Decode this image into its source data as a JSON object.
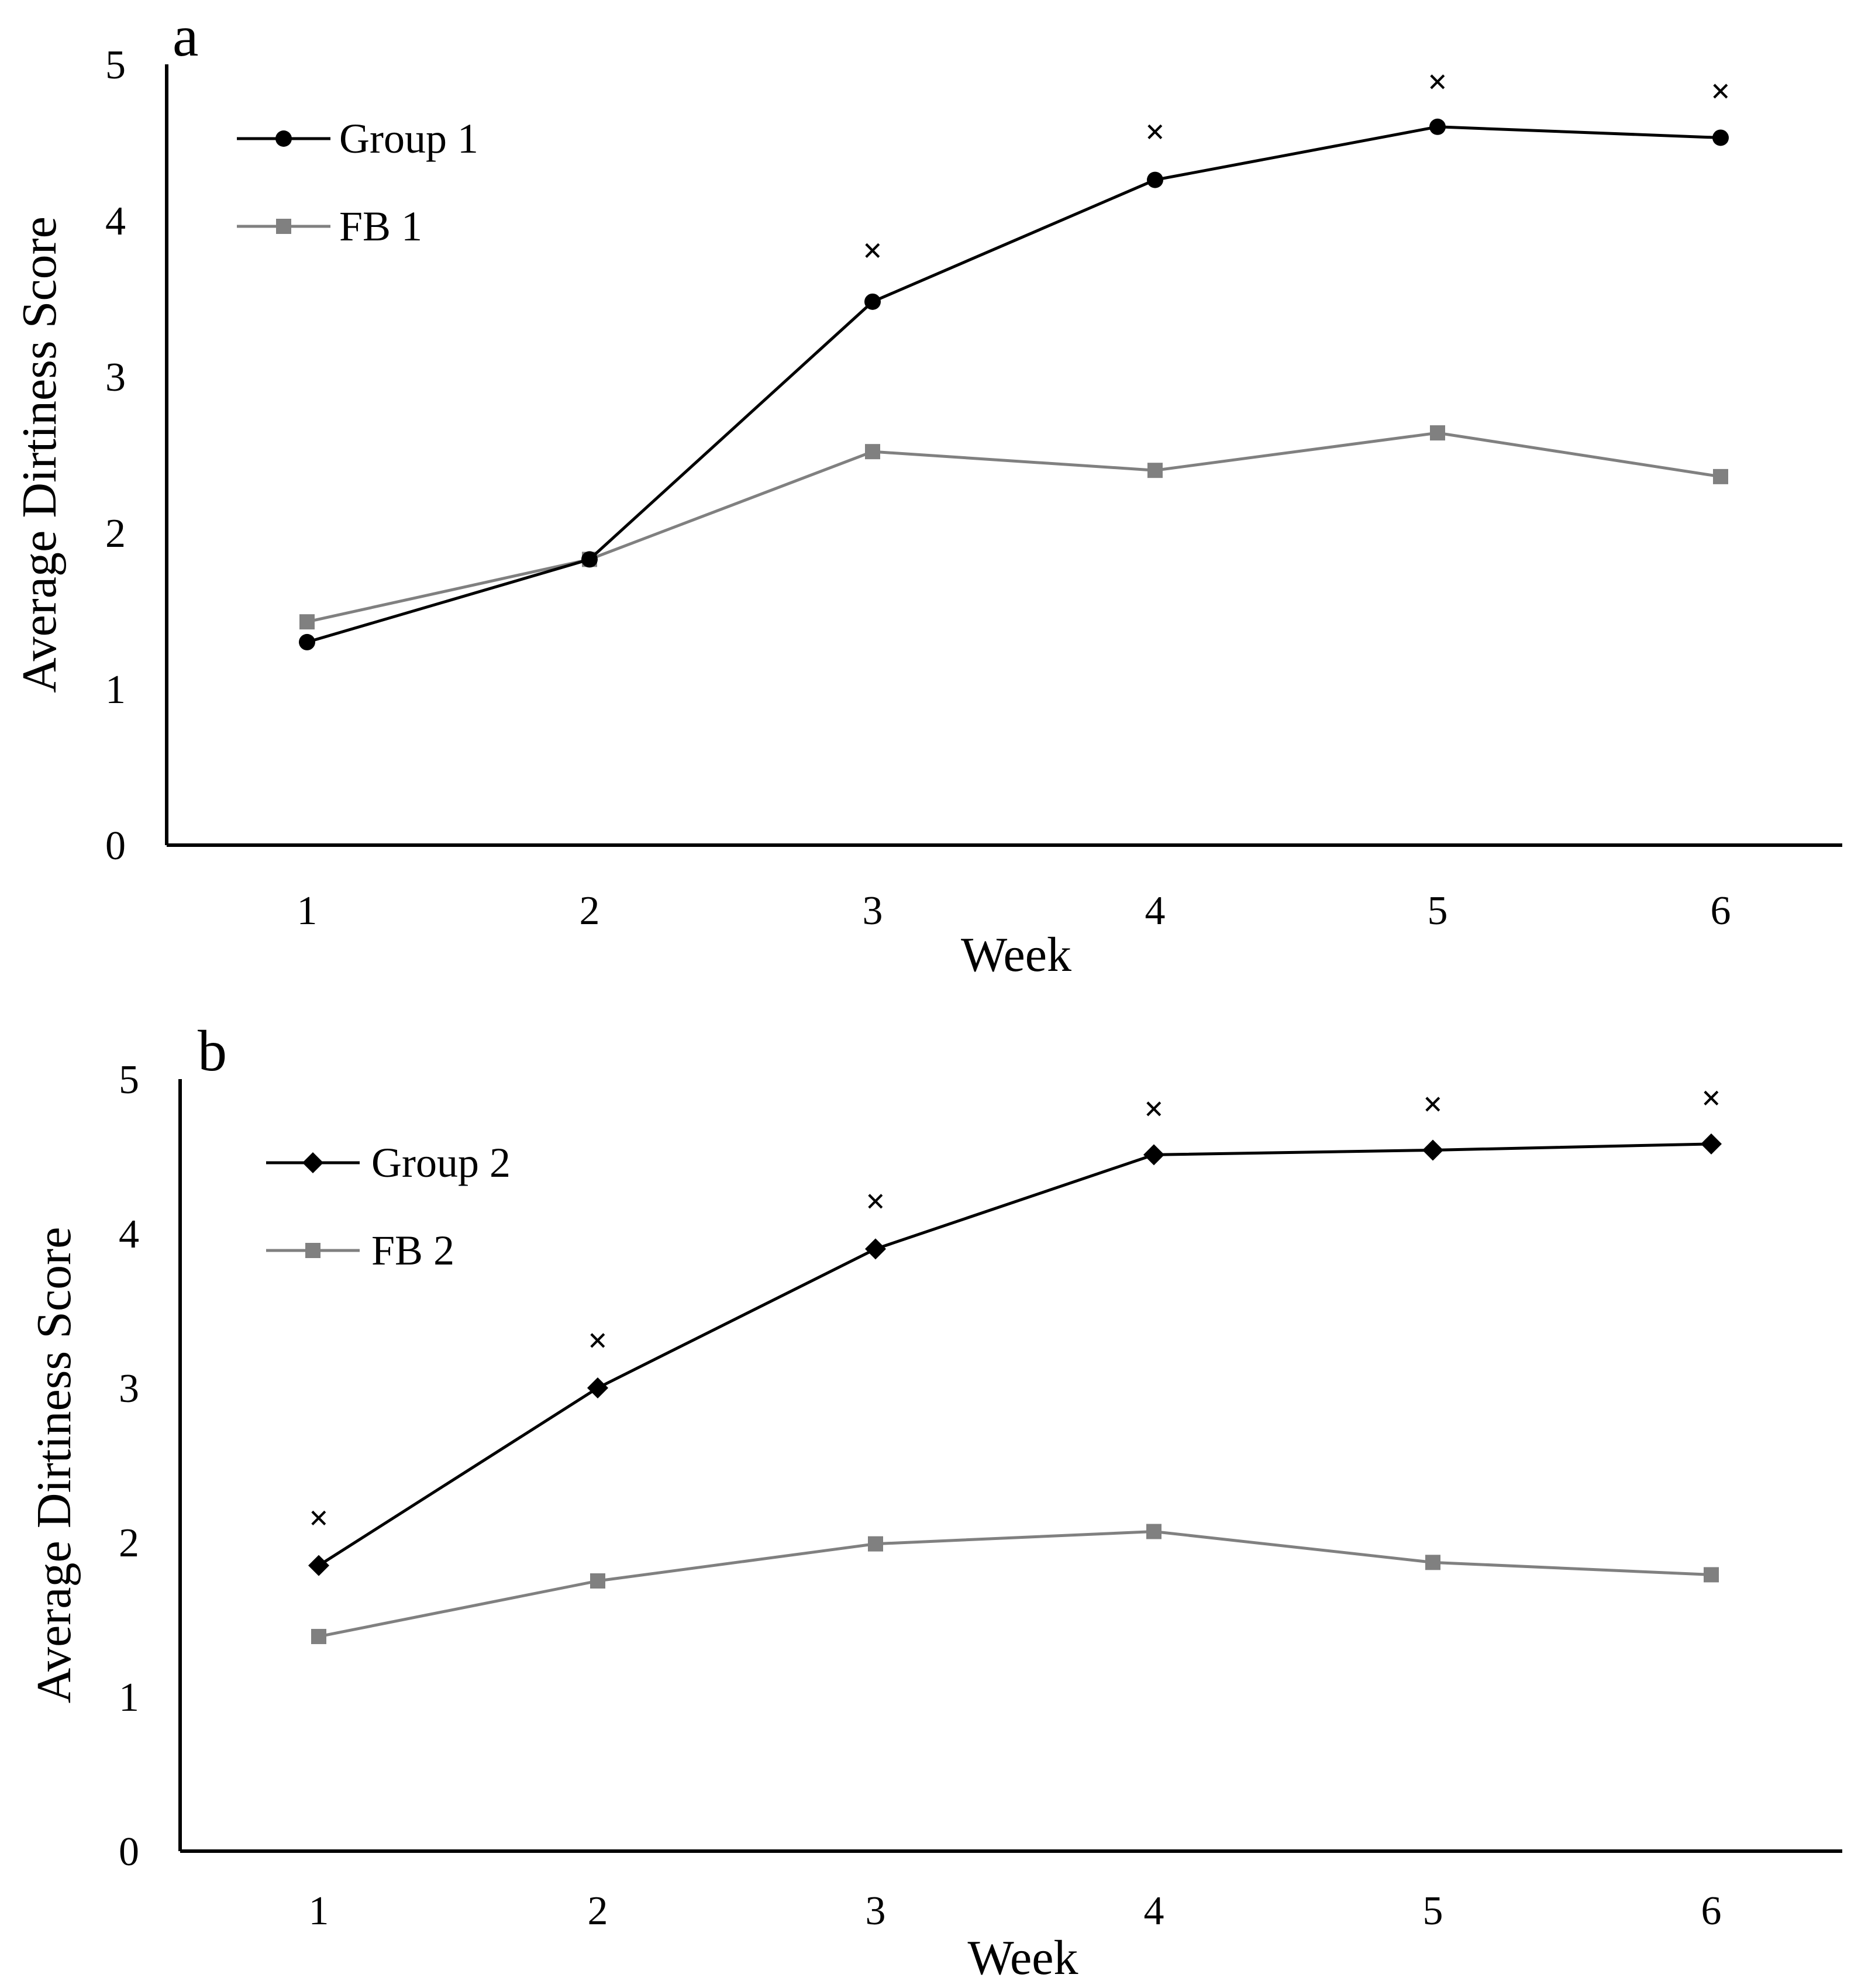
{
  "chart_data": [
    {
      "type": "line",
      "panel_label": "a",
      "categories": [
        "1",
        "2",
        "3",
        "4",
        "5",
        "6"
      ],
      "x": [
        1,
        2,
        3,
        4,
        5,
        6
      ],
      "series": [
        {
          "name": "Group 1",
          "marker": "circle",
          "color": "#000000",
          "values": [
            1.3,
            1.83,
            3.48,
            4.26,
            4.6,
            4.53
          ]
        },
        {
          "name": "FB 1",
          "marker": "square",
          "color": "#808080",
          "values": [
            1.43,
            1.83,
            2.52,
            2.4,
            2.64,
            2.36
          ]
        }
      ],
      "significance": {
        "marker": "×",
        "x": [
          3,
          4,
          5,
          6
        ],
        "y": [
          3.8,
          4.56,
          4.88,
          4.82
        ]
      },
      "xlabel": "Week",
      "ylabel": "Average Dirtiness Score",
      "ylim": [
        0,
        5
      ],
      "yticks": [
        "0",
        "1",
        "2",
        "3",
        "4",
        "5"
      ],
      "legend_position": "top-left",
      "grid": false
    },
    {
      "type": "line",
      "panel_label": "b",
      "categories": [
        "1",
        "2",
        "3",
        "4",
        "5",
        "6"
      ],
      "x": [
        1,
        2,
        3,
        4,
        5,
        6
      ],
      "series": [
        {
          "name": "Group 2",
          "marker": "diamond",
          "color": "#000000",
          "values": [
            1.85,
            3.0,
            3.9,
            4.51,
            4.54,
            4.58
          ]
        },
        {
          "name": "FB 2",
          "marker": "square",
          "color": "#808080",
          "values": [
            1.39,
            1.75,
            1.99,
            2.07,
            1.87,
            1.79
          ]
        }
      ],
      "significance": {
        "marker": "×",
        "x": [
          1,
          2,
          3,
          4,
          5,
          6
        ],
        "y": [
          2.15,
          3.3,
          4.2,
          4.8,
          4.83,
          4.87
        ]
      },
      "xlabel": "Week",
      "ylabel": "Average Dirtiness Score",
      "ylim": [
        0,
        5
      ],
      "yticks": [
        "0",
        "1",
        "2",
        "3",
        "4",
        "5"
      ],
      "legend_position": "top-left",
      "grid": false
    }
  ]
}
